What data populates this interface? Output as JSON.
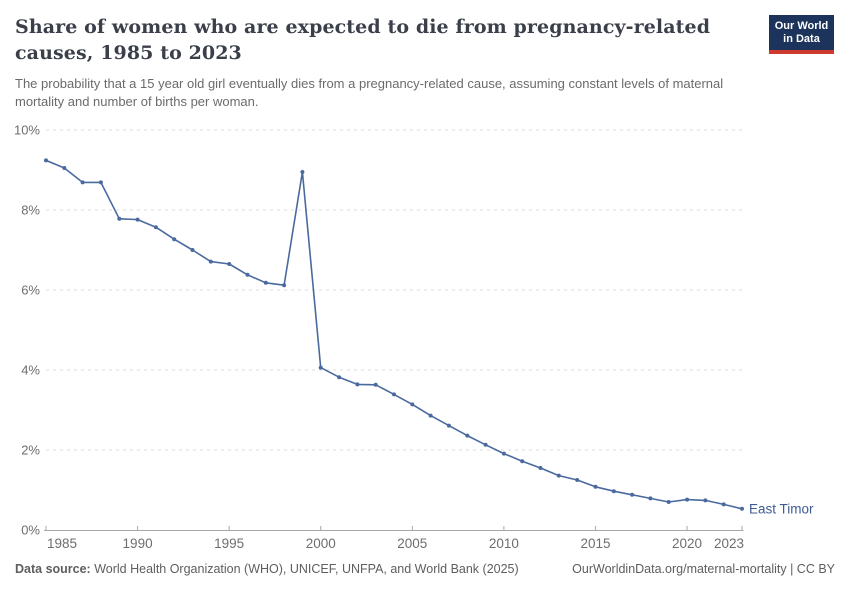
{
  "header": {
    "title_lines": [
      "Share of women who are expected to die from pregnancy-related",
      "causes, 1985 to 2023"
    ],
    "subtitle": "The probability that a 15 year old girl eventually dies from a pregnancy-related cause, assuming constant levels of maternal mortality and number of births per woman.",
    "logo": {
      "line1": "Our World",
      "line2": "in Data"
    }
  },
  "chart_data": {
    "type": "line",
    "title": "Share of women who are expected to die from pregnancy-related causes, 1985 to 2023",
    "x": [
      1985,
      1986,
      1987,
      1988,
      1989,
      1990,
      1991,
      1992,
      1993,
      1994,
      1995,
      1996,
      1997,
      1998,
      1999,
      2000,
      2001,
      2002,
      2003,
      2004,
      2005,
      2006,
      2007,
      2008,
      2009,
      2010,
      2011,
      2012,
      2013,
      2014,
      2015,
      2016,
      2017,
      2018,
      2019,
      2020,
      2021,
      2022,
      2023
    ],
    "series": [
      {
        "name": "East Timor",
        "color": "#4a6a9f",
        "label_color": "#3d5c92",
        "values": [
          9.24,
          9.05,
          8.69,
          8.69,
          7.78,
          7.76,
          7.57,
          7.27,
          7.0,
          6.71,
          6.65,
          6.38,
          6.18,
          6.12,
          8.95,
          4.06,
          3.82,
          3.64,
          3.63,
          3.39,
          3.14,
          2.86,
          2.61,
          2.36,
          2.13,
          1.91,
          1.72,
          1.55,
          1.36,
          1.25,
          1.08,
          0.97,
          0.88,
          0.79,
          0.7,
          0.76,
          0.74,
          0.64,
          0.53
        ]
      }
    ],
    "xlabel": "",
    "ylabel": "",
    "xlim": [
      1985,
      2023
    ],
    "ylim": [
      0,
      10
    ],
    "xticks": [
      1985,
      1990,
      1995,
      2000,
      2005,
      2010,
      2015,
      2020,
      2023
    ],
    "yticks": [
      0,
      2,
      4,
      6,
      8,
      10
    ],
    "ytick_labels": [
      "0%",
      "2%",
      "4%",
      "6%",
      "8%",
      "10%"
    ],
    "grid": "horizontal-dashed",
    "legend": "end-of-line-label",
    "colors": {
      "gridline": "#dedede",
      "axis": "#a8a8a8",
      "tick_label": "#6e6e6e"
    }
  },
  "footer": {
    "datasource_label": "Data source:",
    "datasource_text": "World Health Organization (WHO), UNICEF, UNFPA, and World Bank (2025)",
    "credit": "OurWorldinData.org/maternal-mortality | CC BY"
  }
}
